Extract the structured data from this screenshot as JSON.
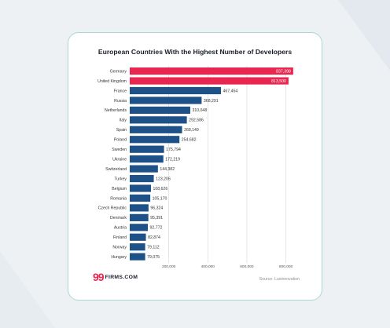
{
  "logo": {
    "mark": "99",
    "text": "FIRMS.COM"
  },
  "source": "Source: Luxinnovation",
  "colors": {
    "highlight": "#e8264f",
    "bar": "#1f5189",
    "border": "#a9d8d2",
    "background": "#eef1f4"
  },
  "chart_data": {
    "type": "bar",
    "orientation": "horizontal",
    "title": "European Countries With the Highest Number of Developers",
    "xlabel": "",
    "ylabel": "",
    "xlim": [
      0,
      850000
    ],
    "x_ticks": [
      200000,
      400000,
      600000,
      800000
    ],
    "x_tick_labels": [
      "200,000",
      "400,000",
      "600,000",
      "800,000"
    ],
    "grid": true,
    "categories": [
      "Germany",
      "United Kingdom",
      "France",
      "Russia",
      "Netherlands",
      "Italy",
      "Spain",
      "Poland",
      "Sweden",
      "Ukraine",
      "Switzerland",
      "Turkey",
      "Belgium",
      "Romania",
      "Czech Republic",
      "Denmark",
      "Austria",
      "Finland",
      "Norway",
      "Hungary"
    ],
    "values": [
      837398,
      813500,
      467454,
      368291,
      310048,
      292586,
      268149,
      254682,
      175794,
      172219,
      144382,
      123206,
      108626,
      105170,
      96324,
      95391,
      92772,
      82874,
      79112,
      79075
    ],
    "value_labels": [
      "837,398",
      "813,500",
      "467,454",
      "368,291",
      "310,048",
      "292,586",
      "268,149",
      "254,682",
      "175,794",
      "172,219",
      "144,382",
      "123,206",
      "108,626",
      "105,170",
      "96,324",
      "95,391",
      "92,772",
      "82,874",
      "79,112",
      "79,075"
    ],
    "highlighted": [
      "Germany",
      "United Kingdom"
    ]
  }
}
